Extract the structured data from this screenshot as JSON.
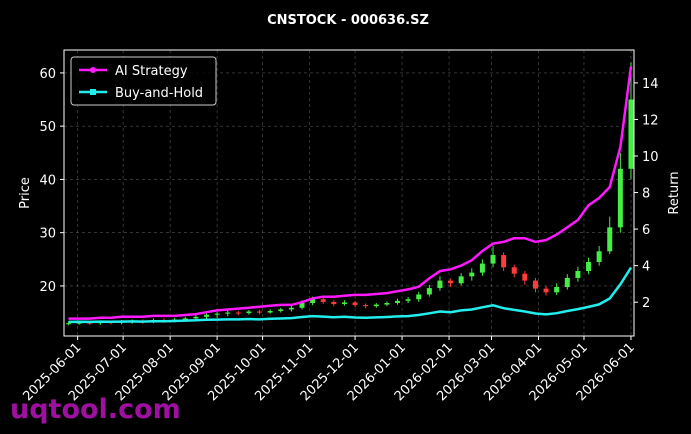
{
  "chart_data": {
    "type": "candlestick",
    "title": "CNSTOCK - 000636.SZ",
    "watermark": "uqtool.com",
    "ylabel": "Price",
    "y2label": "Return",
    "x": [
      "2025-05-26",
      "2025-06-02",
      "2025-06-09",
      "2025-06-16",
      "2025-06-23",
      "2025-06-30",
      "2025-07-07",
      "2025-07-14",
      "2025-07-21",
      "2025-07-28",
      "2025-08-04",
      "2025-08-11",
      "2025-08-18",
      "2025-08-25",
      "2025-09-01",
      "2025-09-08",
      "2025-09-15",
      "2025-09-22",
      "2025-09-29",
      "2025-10-06",
      "2025-10-13",
      "2025-10-20",
      "2025-10-27",
      "2025-11-03",
      "2025-11-10",
      "2025-11-17",
      "2025-11-24",
      "2025-12-01",
      "2025-12-08",
      "2025-12-15",
      "2025-12-22",
      "2025-12-29",
      "2026-01-05",
      "2026-01-12",
      "2026-01-19",
      "2026-01-26",
      "2026-02-02",
      "2026-02-09",
      "2026-02-16",
      "2026-02-23",
      "2026-03-02",
      "2026-03-09",
      "2026-03-16",
      "2026-03-23",
      "2026-03-30",
      "2026-04-06",
      "2026-04-13",
      "2026-04-20",
      "2026-04-27",
      "2026-05-04",
      "2026-05-11",
      "2026-05-18",
      "2026-05-25",
      "2026-06-01"
    ],
    "open": [
      12.9,
      13.0,
      13.1,
      13.0,
      13.2,
      13.1,
      13.3,
      13.4,
      13.3,
      13.6,
      13.5,
      13.7,
      13.9,
      14.2,
      14.6,
      14.8,
      15.0,
      14.9,
      15.2,
      15.0,
      15.3,
      15.6,
      15.9,
      16.8,
      17.5,
      17.0,
      16.6,
      16.9,
      16.4,
      16.2,
      16.5,
      16.8,
      17.2,
      17.5,
      18.4,
      19.6,
      21.0,
      20.5,
      21.8,
      22.5,
      24.2,
      25.8,
      23.5,
      22.3,
      21.0,
      19.5,
      18.8,
      19.8,
      21.5,
      22.8,
      24.5,
      26.5,
      31.0,
      42.0
    ],
    "high": [
      13.3,
      13.4,
      13.4,
      13.5,
      13.5,
      13.6,
      13.7,
      13.7,
      13.9,
      13.9,
      14.0,
      14.2,
      14.5,
      14.9,
      15.1,
      15.4,
      15.3,
      15.5,
      15.5,
      15.6,
      15.9,
      16.3,
      17.3,
      18.0,
      17.8,
      17.3,
      17.3,
      17.2,
      16.7,
      16.8,
      17.1,
      17.6,
      17.9,
      18.9,
      20.2,
      21.8,
      21.4,
      22.4,
      23.3,
      25.0,
      27.5,
      26.3,
      24.0,
      22.8,
      21.5,
      20.0,
      20.5,
      22.2,
      23.6,
      25.3,
      27.5,
      33.0,
      45.0,
      62.0
    ],
    "low": [
      12.6,
      12.7,
      12.7,
      12.7,
      12.8,
      12.8,
      12.9,
      12.9,
      13.0,
      13.1,
      13.2,
      13.3,
      13.5,
      13.7,
      14.0,
      14.3,
      14.5,
      14.6,
      14.7,
      14.8,
      15.0,
      15.2,
      15.6,
      16.4,
      16.6,
      16.2,
      16.3,
      16.0,
      15.8,
      15.9,
      16.2,
      16.5,
      16.8,
      17.0,
      18.0,
      19.1,
      19.8,
      20.1,
      21.0,
      21.9,
      23.5,
      22.8,
      21.6,
      20.2,
      18.8,
      18.2,
      18.3,
      19.3,
      20.8,
      22.2,
      23.8,
      26.0,
      30.0,
      40.0
    ],
    "close": [
      13.0,
      13.1,
      13.0,
      13.2,
      13.1,
      13.3,
      13.4,
      13.3,
      13.6,
      13.5,
      13.7,
      13.9,
      14.2,
      14.6,
      14.8,
      15.0,
      14.9,
      15.2,
      15.0,
      15.3,
      15.6,
      15.9,
      16.8,
      17.5,
      17.0,
      16.6,
      16.9,
      16.4,
      16.2,
      16.5,
      16.8,
      17.2,
      17.5,
      18.4,
      19.6,
      21.0,
      20.5,
      21.8,
      22.5,
      24.2,
      25.8,
      23.5,
      22.3,
      21.0,
      19.5,
      18.8,
      19.8,
      21.5,
      22.8,
      24.5,
      26.5,
      31.0,
      42.0,
      55.0
    ],
    "up_color": "#44ee44",
    "down_color": "#ff3b3b",
    "series": [
      {
        "name": "AI Strategy",
        "color": "#ff19ff",
        "axis": "y2",
        "marker": "circle",
        "values": [
          1.1,
          1.1,
          1.1,
          1.15,
          1.15,
          1.2,
          1.2,
          1.2,
          1.25,
          1.25,
          1.25,
          1.3,
          1.35,
          1.45,
          1.55,
          1.6,
          1.65,
          1.7,
          1.75,
          1.8,
          1.85,
          1.85,
          2.0,
          2.2,
          2.3,
          2.3,
          2.35,
          2.4,
          2.4,
          2.45,
          2.5,
          2.6,
          2.7,
          2.85,
          3.3,
          3.7,
          3.8,
          4.0,
          4.3,
          4.8,
          5.2,
          5.3,
          5.5,
          5.5,
          5.3,
          5.4,
          5.7,
          6.1,
          6.5,
          7.3,
          7.7,
          8.3,
          10.5,
          14.9
        ]
      },
      {
        "name": "Buy-and-Hold",
        "color": "#22eeee",
        "axis": "y2",
        "marker": "square",
        "values": [
          0.92,
          0.93,
          0.92,
          0.94,
          0.93,
          0.94,
          0.95,
          0.94,
          0.96,
          0.96,
          0.97,
          0.99,
          1.01,
          1.04,
          1.05,
          1.06,
          1.06,
          1.08,
          1.06,
          1.09,
          1.11,
          1.13,
          1.19,
          1.24,
          1.21,
          1.18,
          1.2,
          1.16,
          1.15,
          1.17,
          1.19,
          1.22,
          1.24,
          1.3,
          1.39,
          1.49,
          1.45,
          1.55,
          1.6,
          1.72,
          1.83,
          1.67,
          1.58,
          1.49,
          1.38,
          1.33,
          1.4,
          1.52,
          1.62,
          1.74,
          1.88,
          2.2,
          2.98,
          3.9
        ]
      }
    ],
    "xlim": [
      "2025-05-23",
      "2026-06-03"
    ],
    "xticks": [
      "2025-06-01",
      "2025-07-01",
      "2025-08-01",
      "2025-09-01",
      "2025-10-01",
      "2025-11-01",
      "2025-12-01",
      "2026-01-01",
      "2026-02-01",
      "2026-03-01",
      "2026-04-01",
      "2026-05-01",
      "2026-06-01"
    ],
    "ylim": [
      10.6,
      64.3
    ],
    "yticks": [
      20,
      30,
      40,
      50,
      60
    ],
    "y2lim": [
      0.15,
      15.8
    ],
    "y2ticks": [
      2,
      4,
      6,
      8,
      10,
      12,
      14
    ],
    "grid": true,
    "legend": "upper left"
  }
}
